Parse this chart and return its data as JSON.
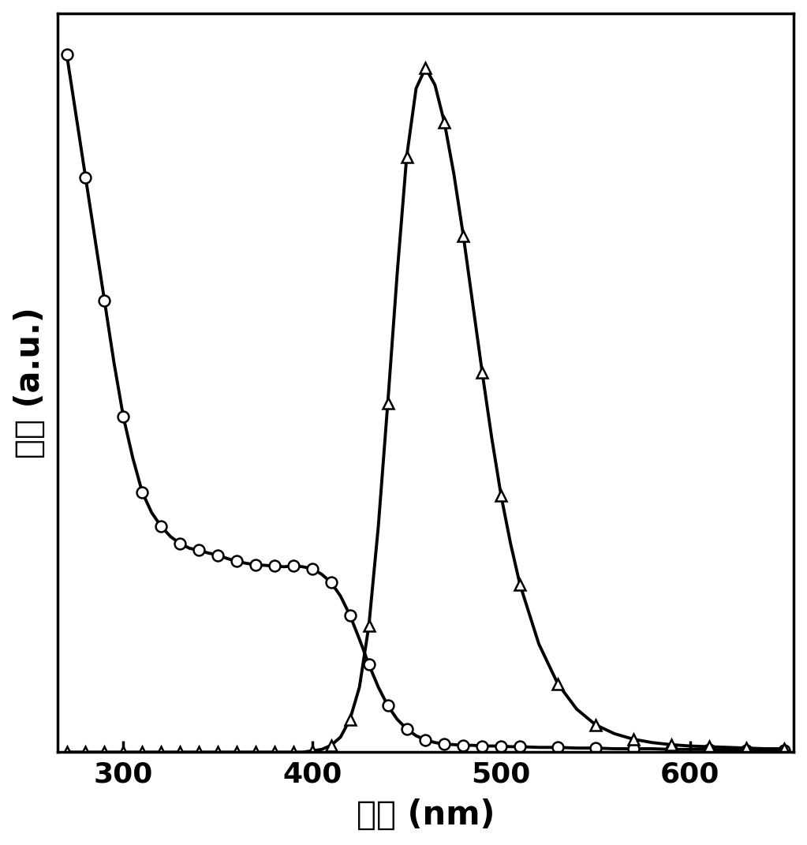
{
  "xlabel": "波长 (nm)",
  "ylabel": "强度 (a.u.)",
  "xlim": [
    265,
    655
  ],
  "ylim": [
    0,
    1.08
  ],
  "x_ticks": [
    300,
    400,
    500,
    600
  ],
  "background_color": "#ffffff",
  "line_color": "#000000",
  "marker_color": "#ffffff",
  "marker_edge_color": "#000000",
  "line_width": 2.8,
  "marker_size": 10,
  "xlabel_fontsize": 30,
  "ylabel_fontsize": 30,
  "tick_fontsize": 26,
  "absorption_x": [
    270,
    275,
    280,
    285,
    290,
    295,
    300,
    305,
    310,
    315,
    320,
    325,
    330,
    335,
    340,
    345,
    350,
    355,
    360,
    365,
    370,
    375,
    380,
    385,
    390,
    395,
    400,
    405,
    410,
    415,
    420,
    425,
    430,
    435,
    440,
    445,
    450,
    455,
    460,
    465,
    470,
    475,
    480,
    485,
    490,
    495,
    500,
    505,
    510,
    520,
    530,
    540,
    550,
    560,
    570,
    580,
    590,
    600,
    610,
    620,
    630,
    640,
    650
  ],
  "absorption_y": [
    1.02,
    0.93,
    0.84,
    0.75,
    0.66,
    0.57,
    0.49,
    0.43,
    0.38,
    0.35,
    0.33,
    0.315,
    0.305,
    0.298,
    0.295,
    0.291,
    0.288,
    0.283,
    0.279,
    0.276,
    0.274,
    0.273,
    0.272,
    0.271,
    0.272,
    0.271,
    0.268,
    0.26,
    0.248,
    0.228,
    0.2,
    0.165,
    0.128,
    0.095,
    0.068,
    0.048,
    0.034,
    0.024,
    0.018,
    0.014,
    0.012,
    0.011,
    0.01,
    0.01,
    0.009,
    0.009,
    0.009,
    0.008,
    0.008,
    0.007,
    0.007,
    0.006,
    0.006,
    0.005,
    0.005,
    0.005,
    0.004,
    0.004,
    0.004,
    0.003,
    0.003,
    0.003,
    0.003
  ],
  "emission_x": [
    270,
    275,
    280,
    285,
    290,
    295,
    300,
    305,
    310,
    315,
    320,
    325,
    330,
    335,
    340,
    345,
    350,
    355,
    360,
    365,
    370,
    375,
    380,
    385,
    390,
    395,
    400,
    405,
    410,
    415,
    420,
    425,
    430,
    435,
    440,
    445,
    450,
    455,
    460,
    465,
    470,
    475,
    480,
    485,
    490,
    495,
    500,
    505,
    510,
    520,
    530,
    540,
    550,
    560,
    570,
    580,
    590,
    600,
    610,
    620,
    630,
    640,
    650
  ],
  "emission_y": [
    0.0,
    0.0,
    0.0,
    0.0,
    0.0,
    0.0,
    0.0,
    0.0,
    0.0,
    0.0,
    0.0,
    0.0,
    0.0,
    0.0,
    0.0,
    0.0,
    0.0,
    0.0,
    0.0,
    0.0,
    0.0,
    0.0,
    0.0,
    0.0,
    0.0,
    0.0,
    0.002,
    0.004,
    0.01,
    0.022,
    0.048,
    0.095,
    0.185,
    0.33,
    0.51,
    0.7,
    0.87,
    0.97,
    1.0,
    0.975,
    0.92,
    0.845,
    0.755,
    0.655,
    0.555,
    0.46,
    0.375,
    0.305,
    0.245,
    0.158,
    0.1,
    0.063,
    0.04,
    0.027,
    0.019,
    0.014,
    0.011,
    0.009,
    0.008,
    0.007,
    0.006,
    0.005,
    0.005
  ],
  "absorption_markevery": 2,
  "emission_markevery": 2
}
